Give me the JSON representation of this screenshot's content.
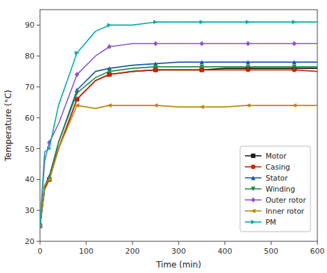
{
  "chart_data": {
    "type": "line",
    "x": [
      0,
      10,
      20,
      40,
      80,
      120,
      150,
      200,
      250,
      300,
      350,
      400,
      450,
      500,
      550,
      600
    ],
    "series": [
      {
        "name": "Motor",
        "color": "#1a1a1a",
        "marker": "square",
        "values": [
          25,
          37,
          40,
          50,
          66,
          72,
          74,
          75,
          75.5,
          75.5,
          75.5,
          76,
          76,
          76,
          76,
          76
        ]
      },
      {
        "name": "Casing",
        "color": "#cc2200",
        "marker": "circle",
        "values": [
          25,
          37,
          40,
          50,
          66,
          72,
          74,
          75,
          75.5,
          75.5,
          75.5,
          75.5,
          75.5,
          75.5,
          75.5,
          75
        ]
      },
      {
        "name": "Stator",
        "color": "#1855b0",
        "marker": "triangle-up",
        "values": [
          25,
          38,
          41,
          52,
          69,
          75,
          76,
          77,
          77.5,
          78,
          78,
          78,
          78,
          78,
          78,
          78
        ]
      },
      {
        "name": "Winding",
        "color": "#228844",
        "marker": "triangle-down",
        "values": [
          25,
          38,
          40,
          52,
          68,
          73,
          75,
          76,
          76.5,
          76.5,
          76.5,
          76.5,
          76.5,
          76.5,
          76.5,
          76.5
        ]
      },
      {
        "name": "Outer rotor",
        "color": "#8855cc",
        "marker": "diamond",
        "values": [
          25,
          46,
          52,
          58,
          74,
          80,
          83,
          84,
          84,
          84,
          84,
          84,
          84,
          84,
          84,
          84
        ]
      },
      {
        "name": "Inner rotor",
        "color": "#b88800",
        "marker": "triangle-left",
        "values": [
          25,
          38,
          40,
          50,
          64,
          63,
          64,
          64,
          64,
          63.5,
          63.5,
          63.5,
          64,
          64,
          64,
          64
        ]
      },
      {
        "name": "PM",
        "color": "#00aaaa",
        "marker": "triangle-right",
        "values": [
          25,
          49,
          50,
          64,
          81,
          88,
          90,
          90,
          91,
          91,
          91,
          91,
          91,
          91,
          91,
          91
        ]
      }
    ],
    "xlabel": "Time (min)",
    "ylabel": "Temperature (°C)",
    "xlim": [
      0,
      600
    ],
    "ylim": [
      20,
      95
    ],
    "xticks": [
      0,
      100,
      200,
      300,
      400,
      500,
      600
    ],
    "yticks": [
      20,
      30,
      40,
      50,
      60,
      70,
      80,
      90
    ],
    "grid": false,
    "legend": "lower right"
  }
}
